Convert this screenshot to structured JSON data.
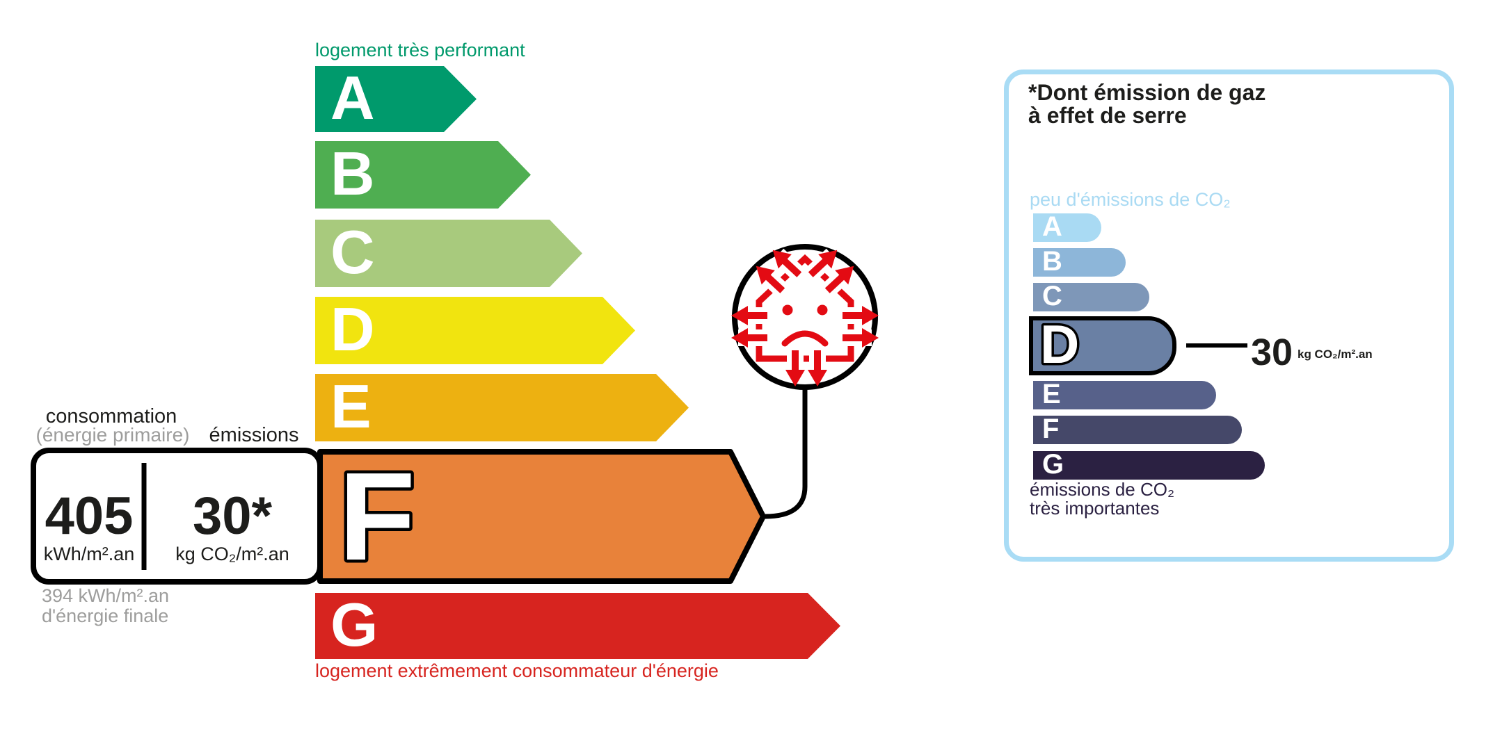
{
  "diagram_title": "étiquette énergie DPE",
  "energy_scale": {
    "top_label": "logement très performant",
    "top_label_color": "#00996B",
    "bottom_label": "logement extrêmement consommateur d'énergie",
    "bottom_label_color": "#D7241F",
    "current_class": "F",
    "bars": [
      {
        "letter": "A",
        "color": "#009A6C"
      },
      {
        "letter": "B",
        "color": "#4FAE51"
      },
      {
        "letter": "C",
        "color": "#A8CA7D"
      },
      {
        "letter": "D",
        "color": "#F1E40F"
      },
      {
        "letter": "E",
        "color": "#EDB111"
      },
      {
        "letter": "F",
        "color": "#E8823A"
      },
      {
        "letter": "G",
        "color": "#D7241F"
      }
    ]
  },
  "consumption_box": {
    "label_consumption": "consommation",
    "label_primary": "(énergie primaire)",
    "label_emissions": "émissions",
    "primary_value": "405",
    "primary_unit": "kWh/m².an",
    "emissions_value": "30*",
    "emissions_unit": "kg CO₂/m².an",
    "final_energy_line1": "394 kWh/m².an",
    "final_energy_line2": "d'énergie finale"
  },
  "house_badge": {
    "icon": "sad-house-heat-loss-icon",
    "color": "#E30B13"
  },
  "co2_panel": {
    "border_color": "#A9DCF5",
    "title_line1": "*Dont émission de gaz",
    "title_line2": "à effet de serre",
    "top_label": "peu d'émissions de CO₂",
    "top_label_color": "#A9DAF3",
    "bottom_label_line1": "émissions de CO₂",
    "bottom_label_line2": "très importantes",
    "bottom_label_color": "#2B2142",
    "current_class": "D",
    "callout_value": "30",
    "callout_unit": "kg CO₂/m².an",
    "bars": [
      {
        "letter": "A",
        "color": "#A9DAF3"
      },
      {
        "letter": "B",
        "color": "#8DB6D9"
      },
      {
        "letter": "C",
        "color": "#7E97B8"
      },
      {
        "letter": "D",
        "color": "#6A80A4"
      },
      {
        "letter": "E",
        "color": "#57618A"
      },
      {
        "letter": "F",
        "color": "#454869"
      },
      {
        "letter": "G",
        "color": "#2B2142"
      }
    ]
  }
}
